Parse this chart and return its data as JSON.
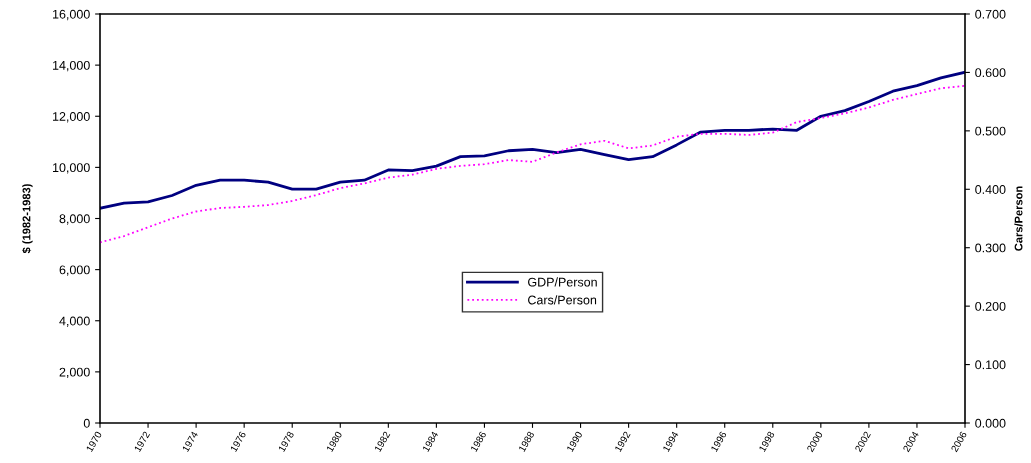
{
  "chart_data": {
    "type": "line",
    "ylabel": "$ (1982-1983)",
    "y2label": "Cars/Person",
    "x": [
      1970,
      1971,
      1972,
      1973,
      1974,
      1975,
      1976,
      1977,
      1978,
      1979,
      1980,
      1981,
      1982,
      1983,
      1984,
      1985,
      1986,
      1987,
      1988,
      1989,
      1990,
      1991,
      1992,
      1993,
      1994,
      1995,
      1996,
      1997,
      1998,
      1999,
      2000,
      2001,
      2002,
      2003,
      2004,
      2005,
      2006
    ],
    "series": [
      {
        "name": "GDP/Person",
        "color": "#000080",
        "line_style": "solid",
        "values": [
          8400,
          8600,
          8650,
          8900,
          9300,
          9500,
          9500,
          9420,
          9150,
          9150,
          9420,
          9500,
          9900,
          9870,
          10050,
          10420,
          10450,
          10650,
          10700,
          10580,
          10700,
          10500,
          10300,
          10420,
          10880,
          11380,
          11450,
          11450,
          11500,
          11450,
          12000,
          12220,
          12580,
          12980,
          13200,
          13500,
          13720
        ]
      },
      {
        "name": "Cars/Person",
        "color": "#ff00ff",
        "line_style": "dotted",
        "axis": "y2",
        "values": [
          0.309,
          0.32,
          0.335,
          0.35,
          0.362,
          0.368,
          0.37,
          0.373,
          0.38,
          0.39,
          0.402,
          0.41,
          0.42,
          0.425,
          0.435,
          0.44,
          0.443,
          0.45,
          0.447,
          0.463,
          0.477,
          0.483,
          0.47,
          0.475,
          0.49,
          0.495,
          0.495,
          0.493,
          0.497,
          0.515,
          0.522,
          0.53,
          0.54,
          0.553,
          0.563,
          0.573,
          0.577
        ]
      }
    ],
    "xlim": [
      1970,
      2006
    ],
    "xticks": [
      1970,
      1972,
      1974,
      1976,
      1978,
      1980,
      1982,
      1984,
      1986,
      1988,
      1990,
      1992,
      1994,
      1996,
      1998,
      2000,
      2002,
      2004,
      2006
    ],
    "ylim": [
      0,
      16000
    ],
    "yticks": [
      {
        "value": 0,
        "label": "0"
      },
      {
        "value": 2000,
        "label": "2,000"
      },
      {
        "value": 4000,
        "label": "4,000"
      },
      {
        "value": 6000,
        "label": "6,000"
      },
      {
        "value": 8000,
        "label": "8,000"
      },
      {
        "value": 10000,
        "label": "10,000"
      },
      {
        "value": 12000,
        "label": "12,000"
      },
      {
        "value": 14000,
        "label": "14,000"
      },
      {
        "value": 16000,
        "label": "16,000"
      }
    ],
    "y2lim": [
      0,
      0.7
    ],
    "y2ticks": [
      {
        "value": 0,
        "label": "0.000"
      },
      {
        "value": 0.1,
        "label": "0.100"
      },
      {
        "value": 0.2,
        "label": "0.200"
      },
      {
        "value": 0.3,
        "label": "0.300"
      },
      {
        "value": 0.4,
        "label": "0.400"
      },
      {
        "value": 0.5,
        "label": "0.500"
      },
      {
        "value": 0.6,
        "label": "0.600"
      },
      {
        "value": 0.7,
        "label": "0.700"
      }
    ],
    "legend": "center"
  }
}
